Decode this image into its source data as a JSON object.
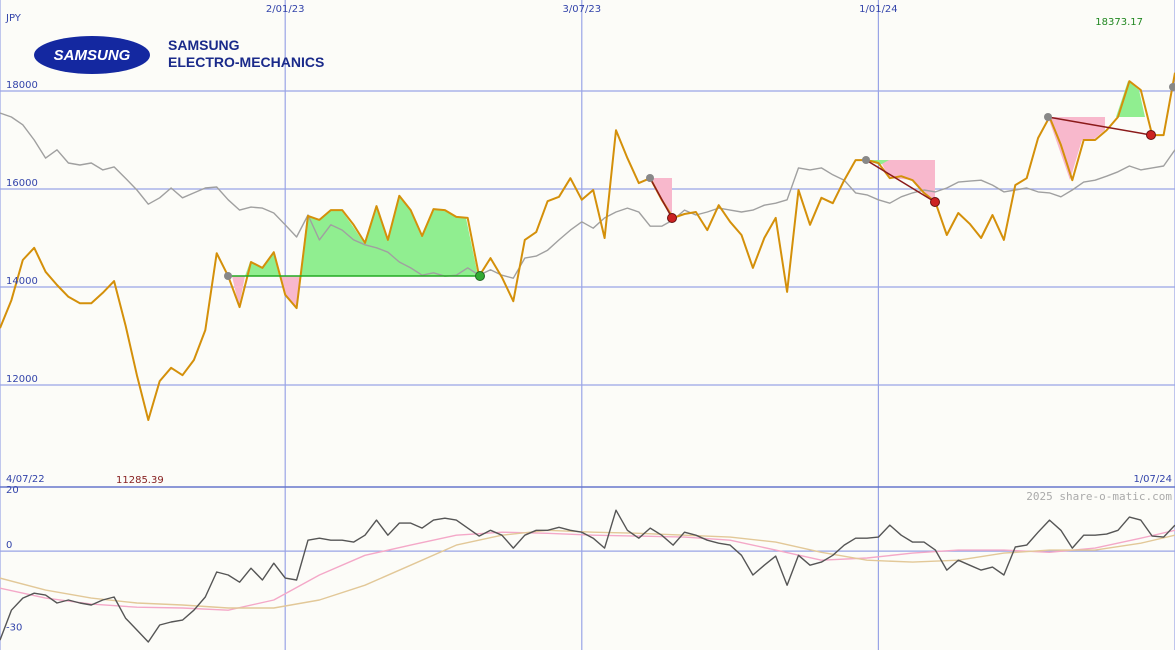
{
  "logo": {
    "mark": "SAMSUNG",
    "name_lines": [
      "SAMSUNG",
      "ELECTRO-MECHANICS"
    ]
  },
  "watermark": "2025 share-o-matic.com",
  "chart_data": [
    {
      "type": "line",
      "currency": "JPY",
      "x": [
        0,
        1,
        2,
        3,
        4,
        5,
        6,
        7,
        8,
        9,
        10,
        11,
        12,
        13,
        14,
        15,
        16,
        17,
        18,
        19,
        20,
        21,
        22,
        23,
        24,
        25,
        26,
        27,
        28,
        29,
        30,
        31,
        32,
        33,
        34,
        35,
        36,
        37,
        38,
        39,
        40,
        41,
        42,
        43,
        44,
        45,
        46,
        47,
        48,
        49,
        50,
        51,
        52,
        53,
        54,
        55,
        56,
        57,
        58,
        59,
        60,
        61,
        62,
        63,
        64,
        65,
        66,
        67,
        68,
        69,
        70,
        71,
        72,
        73,
        74,
        75,
        76,
        77,
        78,
        79,
        80,
        81,
        82,
        83,
        84,
        85,
        86,
        87,
        88,
        89,
        90,
        91,
        92,
        93,
        94,
        95,
        96,
        97,
        98,
        99,
        100,
        101,
        102,
        103
      ],
      "xlim": [
        0,
        103
      ],
      "xticks": [
        {
          "value": 0,
          "label": "4/07/22"
        },
        {
          "value": 25,
          "label": "2/01/23"
        },
        {
          "value": 51,
          "label": "3/07/23"
        },
        {
          "value": 77,
          "label": "1/01/24"
        },
        {
          "value": 103,
          "label": "1/07/24"
        }
      ],
      "ylim": [
        9918,
        19857
      ],
      "yticks": [
        12000,
        14000,
        16000,
        18000
      ],
      "grid": true,
      "series": [
        {
          "color": "#a0a0a0",
          "values": [
            17550,
            17470,
            17310,
            17000,
            16630,
            16800,
            16530,
            16490,
            16530,
            16390,
            16450,
            16220,
            15980,
            15690,
            15820,
            16020,
            15820,
            15920,
            16020,
            16040,
            15780,
            15570,
            15630,
            15610,
            15510,
            15270,
            15020,
            15470,
            14960,
            15270,
            15160,
            14960,
            14860,
            14800,
            14710,
            14510,
            14390,
            14240,
            14290,
            14220,
            14240,
            14390,
            14240,
            14350,
            14240,
            14180,
            14590,
            14630,
            14750,
            14960,
            15160,
            15330,
            15200,
            15410,
            15530,
            15610,
            15530,
            15240,
            15240,
            15370,
            15570,
            15470,
            15530,
            15610,
            15570,
            15530,
            15570,
            15670,
            15710,
            15780,
            16430,
            16390,
            16430,
            16290,
            16180,
            15920,
            15880,
            15780,
            15710,
            15840,
            15920,
            15980,
            15940,
            16020,
            16140,
            16160,
            16180,
            16080,
            15940,
            15980,
            16020,
            15940,
            15920,
            15840,
            15980,
            16140,
            16180,
            16260,
            16350,
            16470,
            16390,
            16430,
            16470,
            16800
          ]
        },
        {
          "color": "#d4900a",
          "values": [
            13160,
            13730,
            14550,
            14800,
            14310,
            14040,
            13800,
            13670,
            13670,
            13880,
            14120,
            13220,
            12200,
            11285.39,
            12080,
            12350,
            12200,
            12510,
            13120,
            14690,
            14220,
            13590,
            14510,
            14390,
            14710,
            13840,
            13570,
            15450,
            15370,
            15570,
            15570,
            15270,
            14900,
            15650,
            14960,
            15860,
            15570,
            15040,
            15590,
            15570,
            15430,
            15410,
            14220,
            14590,
            14200,
            13710,
            14960,
            15120,
            15750,
            15840,
            16220,
            15780,
            15980,
            15000,
            17200,
            16630,
            16120,
            16220,
            15780,
            15410,
            15490,
            15530,
            15160,
            15670,
            15330,
            15060,
            14390,
            15000,
            15410,
            13900,
            15980,
            15270,
            15820,
            15710,
            16180,
            16590,
            16590,
            16530,
            16220,
            16260,
            16180,
            15920,
            15730,
            15060,
            15510,
            15290,
            15000,
            15470,
            14960,
            16080,
            16220,
            17040,
            17470,
            16900,
            16180,
            17000,
            17000,
            17200,
            17470,
            18200,
            18020,
            17100,
            17100,
            18373.17
          ]
        }
      ]
    },
    {
      "type": "line",
      "x": [
        0,
        1,
        2,
        3,
        4,
        5,
        6,
        7,
        8,
        9,
        10,
        11,
        12,
        13,
        14,
        15,
        16,
        17,
        18,
        19,
        20,
        21,
        22,
        23,
        24,
        25,
        26,
        27,
        28,
        29,
        30,
        31,
        32,
        33,
        34,
        35,
        36,
        37,
        38,
        39,
        40,
        41,
        42,
        43,
        44,
        45,
        46,
        47,
        48,
        49,
        50,
        51,
        52,
        53,
        54,
        55,
        56,
        57,
        58,
        59,
        60,
        61,
        62,
        63,
        64,
        65,
        66,
        67,
        68,
        69,
        70,
        71,
        72,
        73,
        74,
        75,
        76,
        77,
        78,
        79,
        80,
        81,
        82,
        83,
        84,
        85,
        86,
        87,
        88,
        89,
        90,
        91,
        92,
        93,
        94,
        95,
        96,
        97,
        98,
        99,
        100,
        101,
        102,
        103
      ],
      "xlim": [
        0,
        103
      ],
      "ylim": [
        -36,
        23
      ],
      "yticks": [
        20,
        0,
        -30
      ],
      "series": [
        {
          "color": "#f4a8c8",
          "x": [
            0,
            4,
            8,
            12,
            16,
            20,
            24,
            28,
            32,
            36,
            40,
            44,
            48,
            52,
            56,
            60,
            64,
            68,
            72,
            76,
            80,
            84,
            88,
            92,
            96,
            100,
            103
          ],
          "values": [
            -13.5,
            -17.1,
            -19.3,
            -20.4,
            -20.7,
            -21.5,
            -17.8,
            -8.7,
            -1.5,
            2.2,
            5.8,
            6.9,
            6.5,
            5.8,
            5.5,
            5.1,
            4.0,
            0.4,
            -3.3,
            -2.5,
            -0.7,
            0.4,
            0.4,
            -0.4,
            1.1,
            4.7,
            7.6
          ]
        },
        {
          "color": "#e2c898",
          "x": [
            0,
            4,
            8,
            12,
            16,
            20,
            24,
            28,
            32,
            36,
            40,
            44,
            48,
            52,
            56,
            60,
            64,
            68,
            72,
            76,
            80,
            84,
            88,
            92,
            96,
            100,
            103
          ],
          "values": [
            -9.8,
            -14.2,
            -17.1,
            -18.9,
            -19.6,
            -20.7,
            -20.7,
            -17.8,
            -12.4,
            -5.1,
            2.2,
            5.8,
            7.6,
            6.9,
            6.5,
            5.8,
            5.1,
            3.3,
            -0.4,
            -3.3,
            -4.0,
            -3.3,
            -0.7,
            0.4,
            0.4,
            2.9,
            5.8
          ]
        },
        {
          "color": "#555555",
          "values": [
            -32.4,
            -21.5,
            -17.1,
            -15.3,
            -16.0,
            -18.9,
            -17.8,
            -18.9,
            -19.6,
            -17.8,
            -16.7,
            -24.4,
            -28.7,
            -33.1,
            -26.9,
            -25.8,
            -25.1,
            -21.5,
            -16.7,
            -7.6,
            -8.7,
            -11.3,
            -6.2,
            -10.5,
            -4.4,
            -9.8,
            -10.5,
            4.0,
            4.7,
            4.0,
            4.0,
            3.3,
            5.8,
            11.3,
            5.8,
            10.2,
            10.2,
            8.4,
            11.3,
            12.0,
            11.3,
            8.4,
            5.5,
            7.6,
            5.8,
            1.1,
            5.8,
            7.6,
            7.6,
            8.7,
            7.6,
            6.9,
            4.7,
            1.1,
            14.9,
            7.6,
            4.7,
            8.4,
            5.8,
            2.2,
            6.9,
            5.8,
            4.0,
            2.9,
            2.2,
            -1.5,
            -8.7,
            -5.1,
            -1.8,
            -12.4,
            -1.5,
            -5.1,
            -4.0,
            -1.5,
            2.2,
            4.7,
            4.7,
            5.1,
            9.5,
            5.8,
            3.3,
            3.3,
            0.4,
            -6.9,
            -3.3,
            -5.1,
            -6.9,
            -5.8,
            -8.7,
            1.5,
            2.2,
            6.9,
            11.3,
            7.6,
            1.1,
            5.8,
            5.8,
            6.2,
            7.6,
            12.4,
            11.3,
            5.5,
            5.1,
            9.5
          ]
        }
      ]
    }
  ]
}
